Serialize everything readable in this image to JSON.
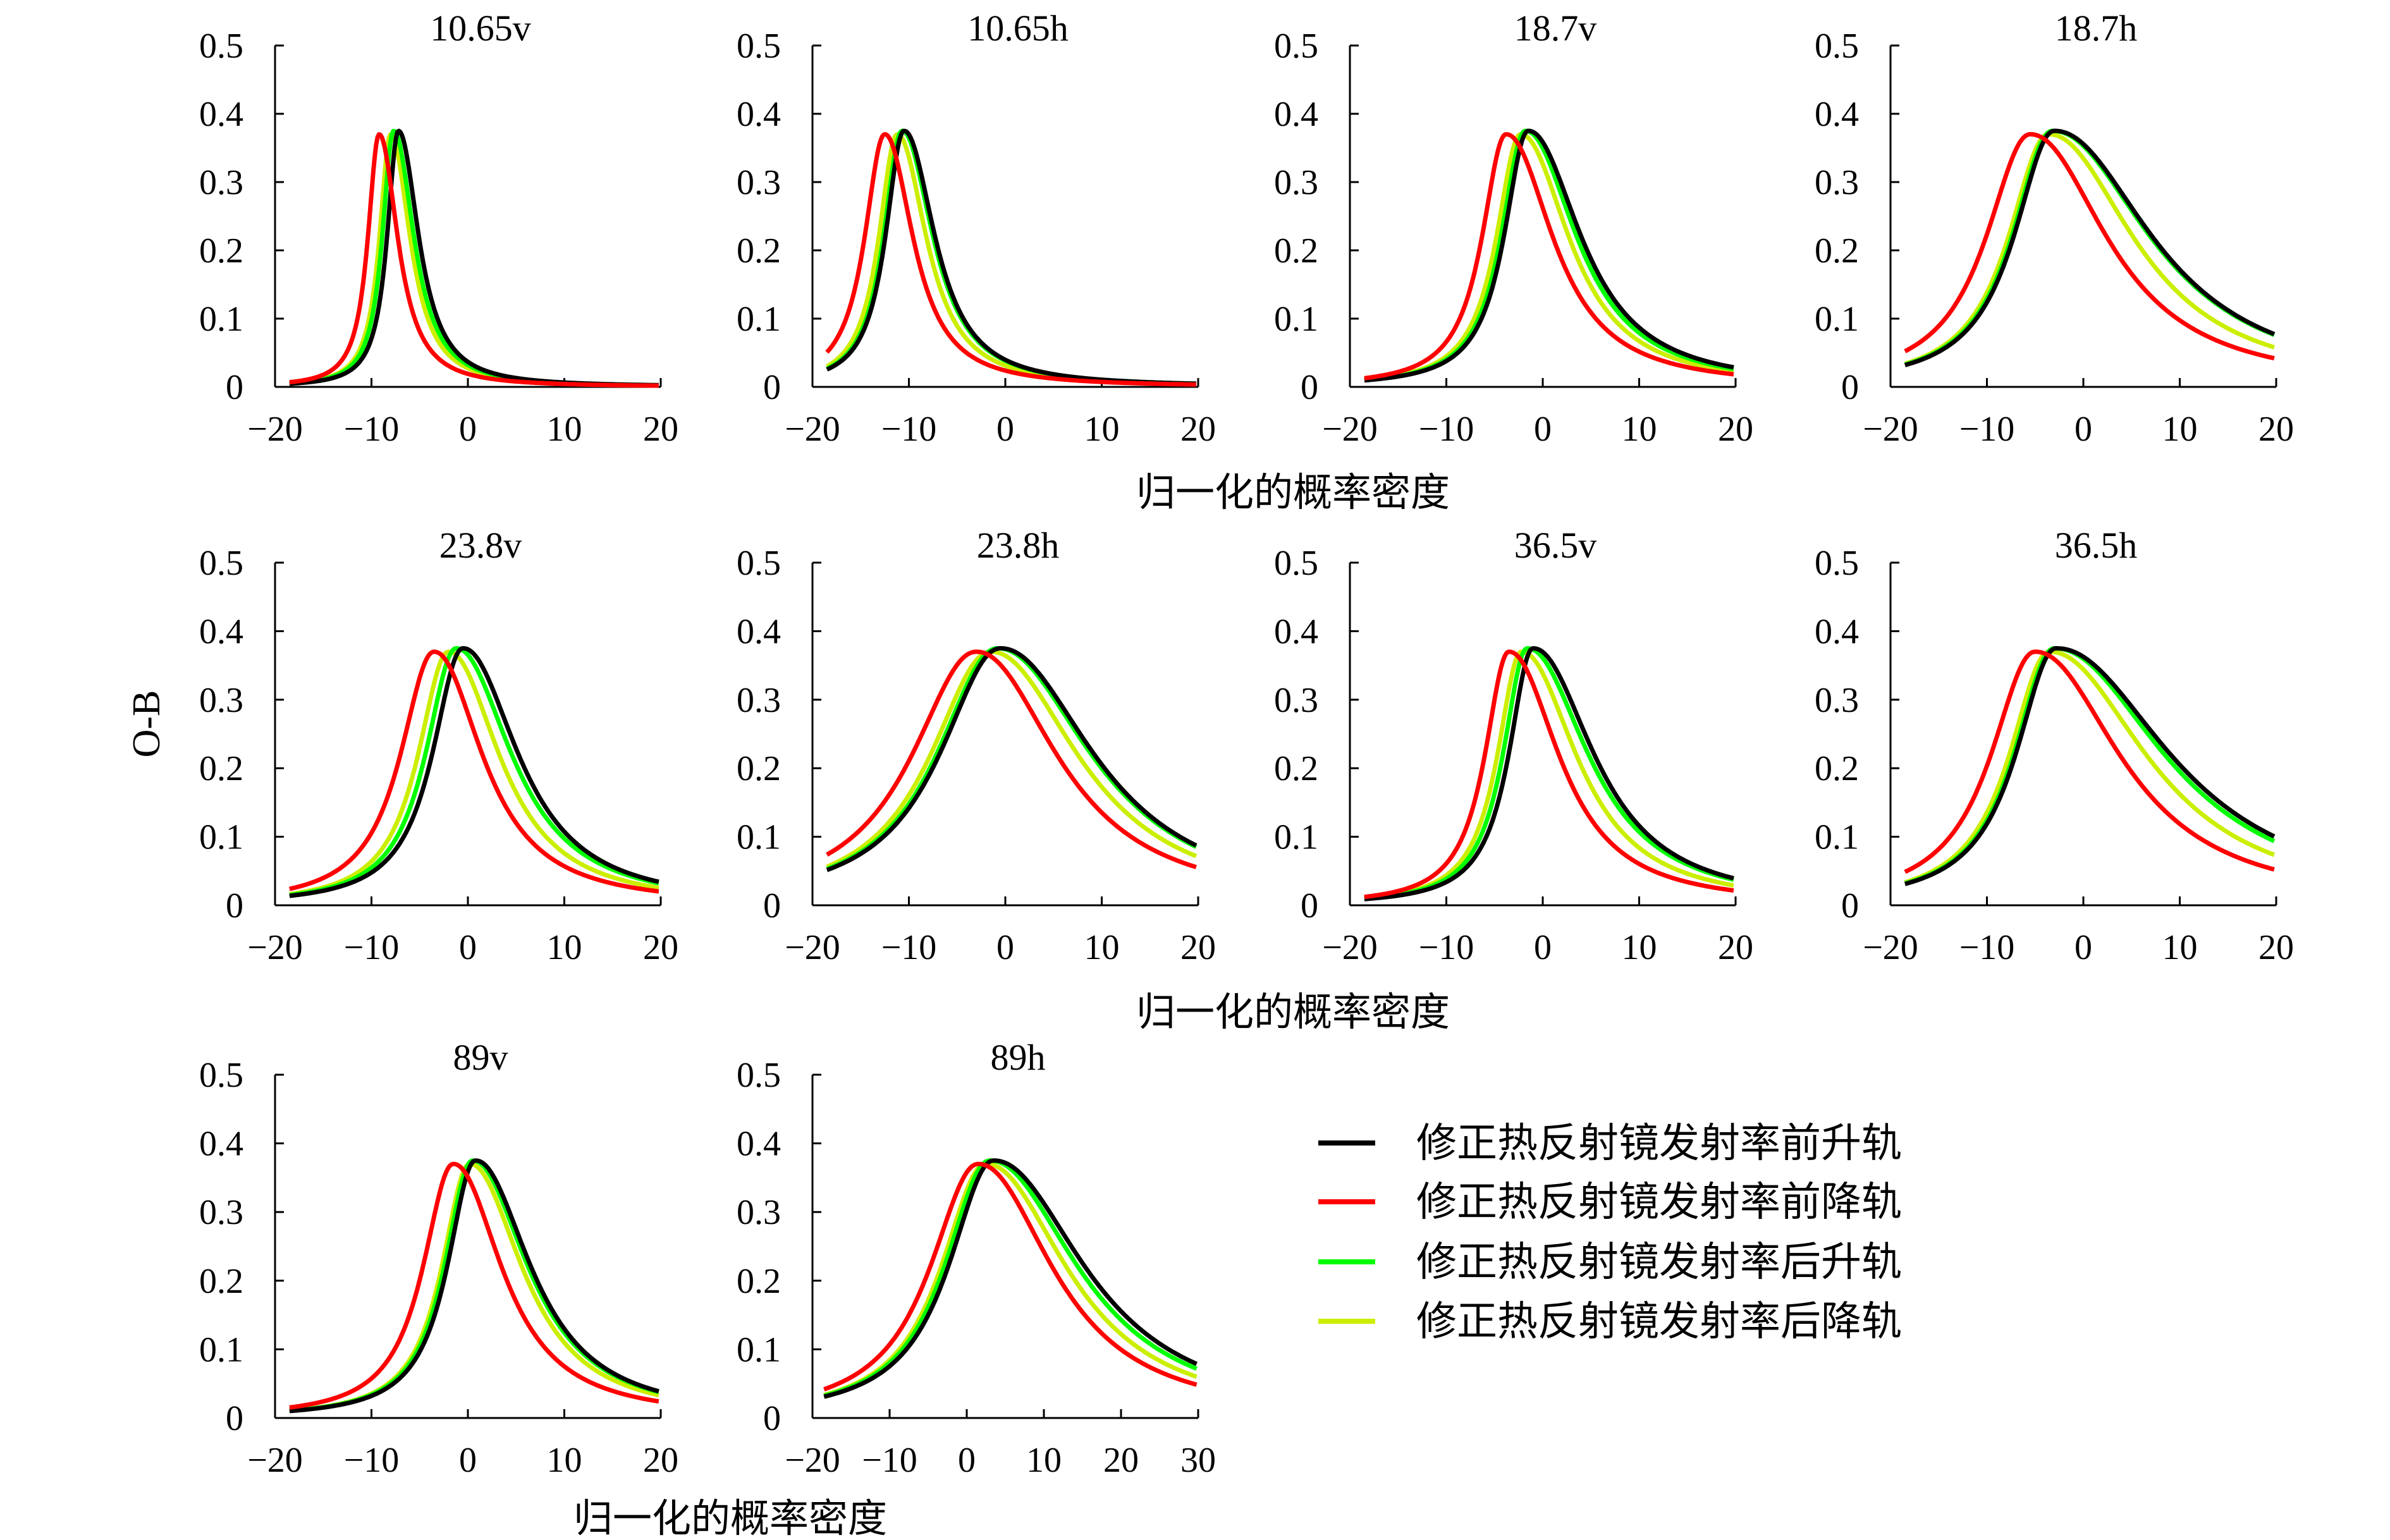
{
  "chart_data": {
    "type": "line",
    "y_axis_title": "O-B",
    "x_axis_title": "归一化的概率密度",
    "series": [
      {
        "name": "修正热反射镜发射率前升轨",
        "color": "#000000"
      },
      {
        "name": "修正热反射镜发射率前降轨",
        "color": "#ff0000"
      },
      {
        "name": "修正热反射镜发射率后升轨",
        "color": "#00ff00"
      },
      {
        "name": "修正热反射镜发射率后降轨",
        "color": "#ccee00"
      }
    ],
    "panels": [
      {
        "title": "10.65v",
        "xlim": [
          -20,
          20
        ],
        "ylim": [
          0,
          0.5
        ],
        "xticks": [
          -20,
          -10,
          0,
          10,
          20
        ],
        "yticks": [
          0,
          0.1,
          0.2,
          0.3,
          0.4,
          0.5
        ],
        "peaks": [
          -7.2,
          -9.2,
          -7.7,
          -8.0
        ],
        "left_width": [
          1.4,
          1.4,
          1.4,
          1.4
        ],
        "right_width": [
          2.5,
          2.3,
          2.5,
          2.4
        ],
        "peak_height": [
          0.375,
          0.37,
          0.375,
          0.37
        ]
      },
      {
        "title": "10.65h",
        "xlim": [
          -20,
          20
        ],
        "ylim": [
          0,
          0.5
        ],
        "xticks": [
          -20,
          -10,
          0,
          10,
          20
        ],
        "yticks": [
          0,
          0.1,
          0.2,
          0.3,
          0.4,
          0.5
        ],
        "peaks": [
          -10.5,
          -12.5,
          -10.7,
          -11.2
        ],
        "left_width": [
          2.3,
          2.5,
          2.3,
          2.3
        ],
        "right_width": [
          3.8,
          3.5,
          3.8,
          3.6
        ],
        "peak_height": [
          0.375,
          0.37,
          0.375,
          0.37
        ]
      },
      {
        "title": "18.7v",
        "xlim": [
          -20,
          20
        ],
        "ylim": [
          0,
          0.5
        ],
        "xticks": [
          -20,
          -10,
          0,
          10,
          20
        ],
        "yticks": [
          0,
          0.1,
          0.2,
          0.3,
          0.4,
          0.5
        ],
        "peaks": [
          -1.5,
          -3.8,
          -1.8,
          -2.3
        ],
        "left_width": [
          3.0,
          3.0,
          3.0,
          3.0
        ],
        "right_width": [
          6.5,
          5.8,
          6.3,
          6.0
        ],
        "peak_height": [
          0.375,
          0.37,
          0.375,
          0.37
        ]
      },
      {
        "title": "18.7h",
        "xlim": [
          -20,
          20
        ],
        "ylim": [
          0,
          0.5
        ],
        "xticks": [
          -20,
          -10,
          0,
          10,
          20
        ],
        "yticks": [
          0,
          0.1,
          0.2,
          0.3,
          0.4,
          0.5
        ],
        "peaks": [
          -3.0,
          -5.5,
          -3.2,
          -3.6
        ],
        "left_width": [
          5.0,
          5.5,
          5.0,
          5.0
        ],
        "right_width": [
          12.0,
          9.5,
          12.0,
          10.5
        ],
        "peak_height": [
          0.375,
          0.37,
          0.375,
          0.37
        ]
      },
      {
        "title": "23.8v",
        "xlim": [
          -20,
          20
        ],
        "ylim": [
          0,
          0.5
        ],
        "xticks": [
          -20,
          -10,
          0,
          10,
          20
        ],
        "yticks": [
          0,
          0.1,
          0.2,
          0.3,
          0.4,
          0.5
        ],
        "peaks": [
          -0.5,
          -3.5,
          -1.2,
          -2.0
        ],
        "left_width": [
          3.8,
          4.2,
          3.8,
          3.8
        ],
        "right_width": [
          6.8,
          6.0,
          6.8,
          6.3
        ],
        "peak_height": [
          0.375,
          0.37,
          0.375,
          0.37
        ]
      },
      {
        "title": "23.8h",
        "xlim": [
          -20,
          20
        ],
        "ylim": [
          0,
          0.5
        ],
        "xticks": [
          -20,
          -10,
          0,
          10,
          20
        ],
        "yticks": [
          0,
          0.1,
          0.2,
          0.3,
          0.4,
          0.5
        ],
        "peaks": [
          -0.5,
          -3.0,
          -0.8,
          -1.5
        ],
        "left_width": [
          7.5,
          8.0,
          7.5,
          7.5
        ],
        "right_width": [
          11.5,
          10.0,
          11.5,
          10.8
        ],
        "peak_height": [
          0.375,
          0.37,
          0.375,
          0.37
        ]
      },
      {
        "title": "36.5v",
        "xlim": [
          -20,
          20
        ],
        "ylim": [
          0,
          0.5
        ],
        "xticks": [
          -20,
          -10,
          0,
          10,
          20
        ],
        "yticks": [
          0,
          0.1,
          0.2,
          0.3,
          0.4,
          0.5
        ],
        "peaks": [
          -1.0,
          -3.5,
          -1.6,
          -2.2
        ],
        "left_width": [
          3.0,
          3.0,
          3.0,
          3.0
        ],
        "right_width": [
          7.5,
          6.2,
          7.5,
          6.8
        ],
        "peak_height": [
          0.375,
          0.37,
          0.375,
          0.37
        ]
      },
      {
        "title": "36.5h",
        "xlim": [
          -20,
          20
        ],
        "ylim": [
          0,
          0.5
        ],
        "xticks": [
          -20,
          -10,
          0,
          10,
          20
        ],
        "yticks": [
          0,
          0.1,
          0.2,
          0.3,
          0.4,
          0.5
        ],
        "peaks": [
          -2.8,
          -5.0,
          -3.0,
          -3.5
        ],
        "left_width": [
          5.0,
          5.5,
          5.0,
          5.0
        ],
        "right_width": [
          14.0,
          10.5,
          13.5,
          12.0
        ],
        "peak_height": [
          0.375,
          0.37,
          0.375,
          0.37
        ]
      },
      {
        "title": "89v",
        "xlim": [
          -20,
          20
        ],
        "ylim": [
          0,
          0.5
        ],
        "xticks": [
          -20,
          -10,
          0,
          10,
          20
        ],
        "yticks": [
          0,
          0.1,
          0.2,
          0.3,
          0.4,
          0.5
        ],
        "peaks": [
          0.8,
          -1.5,
          0.5,
          0.2
        ],
        "left_width": [
          3.5,
          3.8,
          3.5,
          3.5
        ],
        "right_width": [
          6.8,
          6.0,
          6.8,
          6.5
        ],
        "peak_height": [
          0.375,
          0.37,
          0.375,
          0.37
        ]
      },
      {
        "title": "89h",
        "xlim": [
          -20,
          30
        ],
        "ylim": [
          0,
          0.5
        ],
        "xticks": [
          -20,
          -10,
          0,
          10,
          20,
          30
        ],
        "yticks": [
          0,
          0.1,
          0.2,
          0.3,
          0.4,
          0.5
        ],
        "peaks": [
          3.5,
          1.5,
          3.0,
          2.5
        ],
        "left_width": [
          7.0,
          7.5,
          7.0,
          7.0
        ],
        "right_width": [
          14.0,
          11.5,
          13.5,
          12.5
        ],
        "peak_height": [
          0.375,
          0.37,
          0.375,
          0.37
        ]
      }
    ]
  }
}
